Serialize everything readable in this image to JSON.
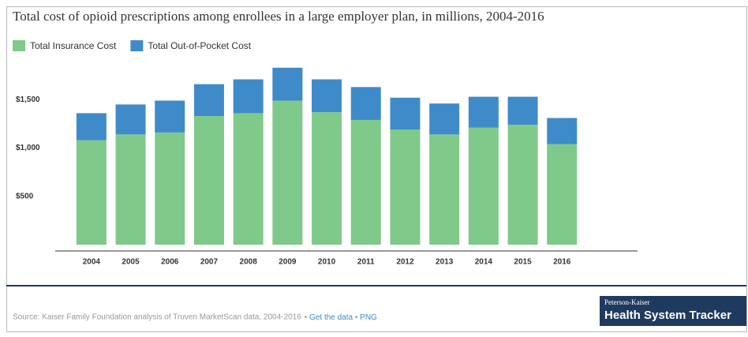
{
  "chart_data": {
    "type": "stacked_bar",
    "title": "Total cost of opioid prescriptions among enrollees in a large employer plan, in millions, 2004-2016",
    "categories": [
      "2004",
      "2005",
      "2006",
      "2007",
      "2008",
      "2009",
      "2010",
      "2011",
      "2012",
      "2013",
      "2014",
      "2015",
      "2016"
    ],
    "series": [
      {
        "name": "Total Insurance Cost",
        "color": "#7fc98a",
        "values": [
          1080,
          1140,
          1160,
          1330,
          1360,
          1490,
          1370,
          1290,
          1190,
          1140,
          1210,
          1240,
          1040
        ]
      },
      {
        "name": "Total Out-of-Pocket Cost",
        "color": "#3f8bc9",
        "values": [
          280,
          310,
          330,
          330,
          350,
          340,
          340,
          340,
          330,
          320,
          320,
          290,
          270
        ]
      }
    ],
    "ylim": [
      0,
      2000
    ],
    "yticks": [
      {
        "value": 500,
        "label": "$500"
      },
      {
        "value": 1000,
        "label": "$1,000"
      },
      {
        "value": 1500,
        "label": "$1,500"
      }
    ],
    "grid": false,
    "legend": "top-left",
    "source": "Source: Kaiser Family Foundation analysis of Truven MarketScan data, 2004-2016",
    "links": [
      "Get the data",
      "PNG"
    ],
    "logo": {
      "top": "Peterson-Kaiser",
      "bottom": "Health System Tracker"
    }
  }
}
